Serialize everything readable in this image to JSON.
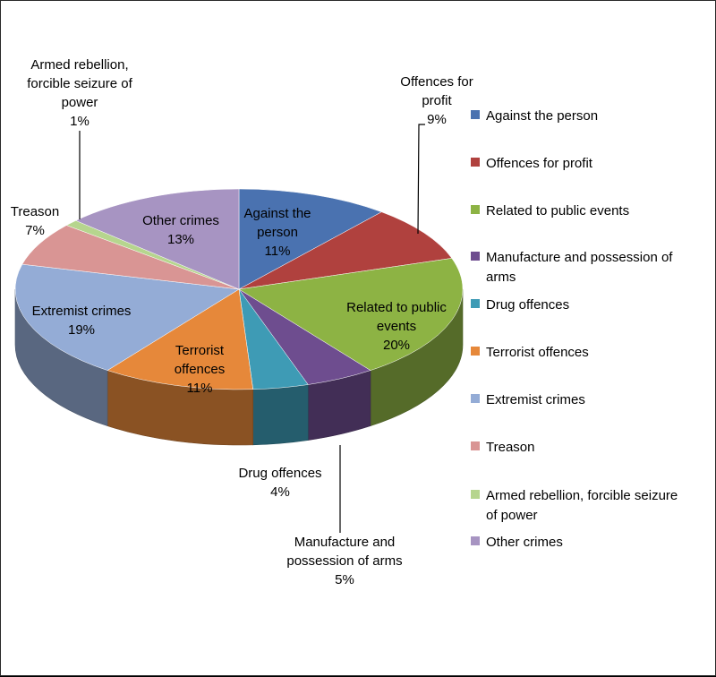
{
  "chart_data": {
    "type": "pie",
    "three_d": true,
    "legend_position": "right",
    "title": "",
    "slices": [
      {
        "name": "Against the person",
        "value": 11,
        "label": "11%",
        "color": "#4A72B0"
      },
      {
        "name": "Offences for profit",
        "value": 9,
        "label": "9%",
        "color": "#B0413E"
      },
      {
        "name": "Related to public events",
        "value": 20,
        "label": "20%",
        "color": "#8DB344"
      },
      {
        "name": "Manufacture and possession of arms",
        "value": 5,
        "label": "5%",
        "color": "#6E4D8F"
      },
      {
        "name": "Drug offences",
        "value": 4,
        "label": "4%",
        "color": "#3E9BB5"
      },
      {
        "name": "Terrorist offences",
        "value": 11,
        "label": "11%",
        "color": "#E6883A"
      },
      {
        "name": "Extremist crimes",
        "value": 19,
        "label": "19%",
        "color": "#94ACD6"
      },
      {
        "name": "Treason",
        "value": 7,
        "label": "7%",
        "color": "#D99594"
      },
      {
        "name": "Armed rebellion,  forcible seizure of power",
        "value": 1,
        "label": "1%",
        "color": "#B6D58E"
      },
      {
        "name": "Other crimes",
        "value": 13,
        "label": "13%",
        "color": "#A794C2"
      }
    ],
    "data_labels": [
      {
        "lines": [
          "Against the",
          "person",
          "11%"
        ]
      },
      {
        "lines": [
          "Offences for",
          "profit",
          "9%"
        ]
      },
      {
        "lines": [
          "Related to public",
          "events",
          "20%"
        ]
      },
      {
        "lines": [
          "Manufacture and",
          "possession of arms",
          "5%"
        ]
      },
      {
        "lines": [
          "Drug offences",
          "4%"
        ]
      },
      {
        "lines": [
          "Terrorist",
          "offences",
          "11%"
        ]
      },
      {
        "lines": [
          "Extremist crimes",
          "19%"
        ]
      },
      {
        "lines": [
          "Treason",
          "7%"
        ]
      },
      {
        "lines": [
          "Armed rebellion,",
          "forcible seizure of",
          "power",
          "1%"
        ]
      },
      {
        "lines": [
          "Other crimes",
          "13%"
        ]
      }
    ],
    "legend": [
      {
        "lines": [
          "Against the person"
        ]
      },
      {
        "lines": [
          "Offences for profit"
        ]
      },
      {
        "lines": [
          "Related to public events"
        ]
      },
      {
        "lines": [
          "Manufacture and possession of",
          "arms"
        ]
      },
      {
        "lines": [
          "Drug offences"
        ]
      },
      {
        "lines": [
          "Terrorist offences"
        ]
      },
      {
        "lines": [
          "Extremist crimes"
        ]
      },
      {
        "lines": [
          "Treason"
        ]
      },
      {
        "lines": [
          "Armed rebellion,  forcible seizure",
          "of power"
        ]
      },
      {
        "lines": [
          "Other crimes"
        ]
      }
    ]
  }
}
